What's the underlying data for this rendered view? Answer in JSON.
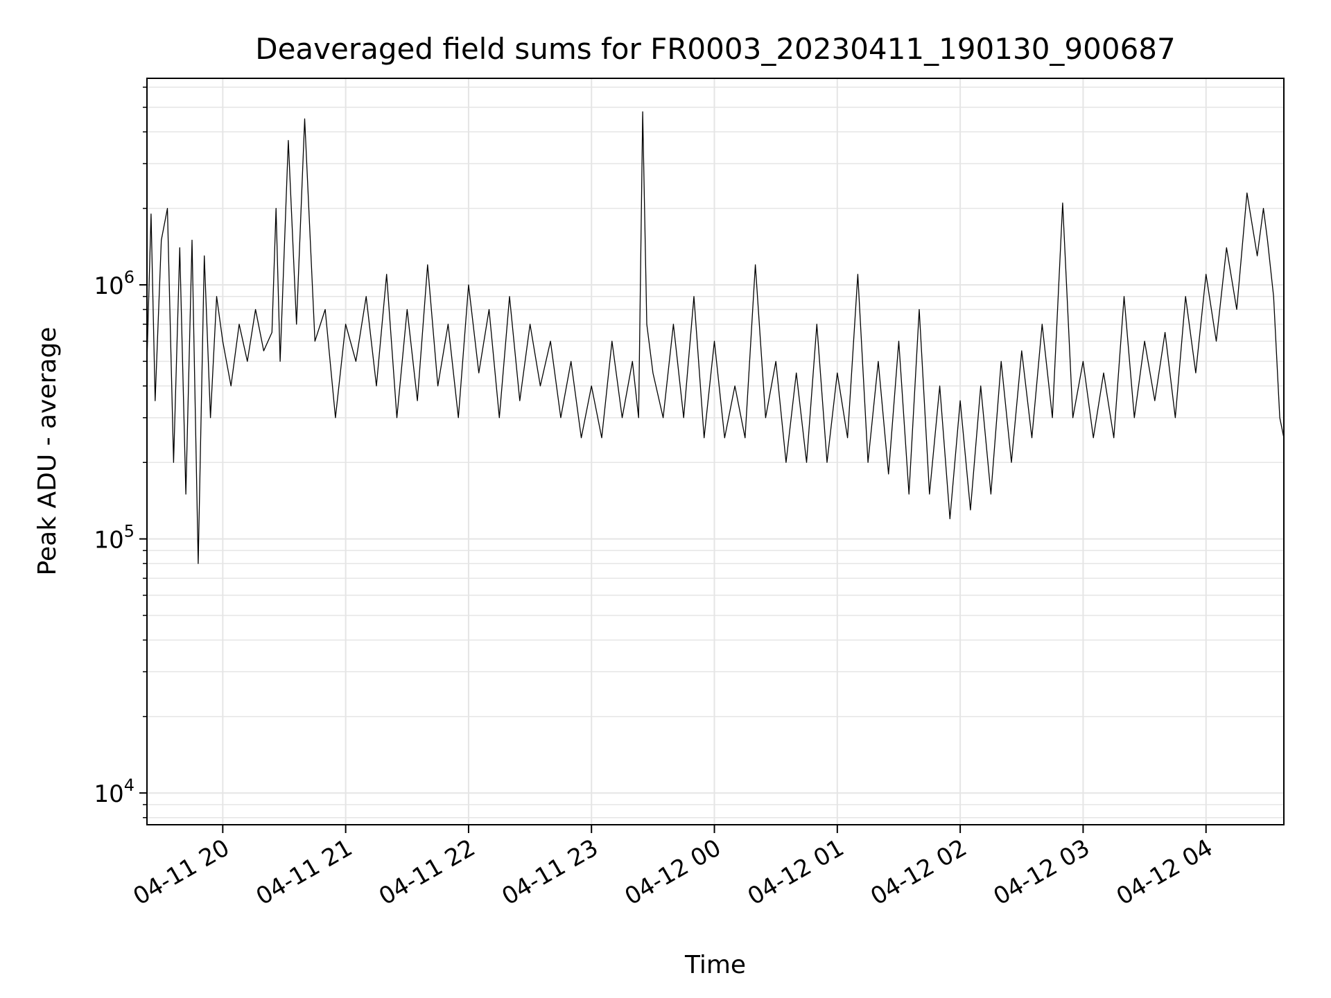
{
  "chart_data": {
    "type": "line",
    "title": "Deaveraged field sums for FR0003_20230411_190130_900687",
    "xlabel": "Time",
    "ylabel": "Peak ADU - average",
    "x_range": [
      "2023-04-11 19:23",
      "2023-04-12 04:38"
    ],
    "y_scale": "log",
    "ylim": [
      7500,
      6500000
    ],
    "y_ticks": [
      {
        "value": 10000,
        "base": "10",
        "exp": "4"
      },
      {
        "value": 100000,
        "base": "10",
        "exp": "5"
      },
      {
        "value": 1000000,
        "base": "10",
        "exp": "6"
      }
    ],
    "x_ticks": [
      {
        "value": "2023-04-11 20:00",
        "label": "04-11 20"
      },
      {
        "value": "2023-04-11 21:00",
        "label": "04-11 21"
      },
      {
        "value": "2023-04-11 22:00",
        "label": "04-11 22"
      },
      {
        "value": "2023-04-11 23:00",
        "label": "04-11 23"
      },
      {
        "value": "2023-04-12 00:00",
        "label": "04-12 00"
      },
      {
        "value": "2023-04-12 01:00",
        "label": "04-12 01"
      },
      {
        "value": "2023-04-12 02:00",
        "label": "04-12 02"
      },
      {
        "value": "2023-04-12 03:00",
        "label": "04-12 03"
      },
      {
        "value": "2023-04-12 04:00",
        "label": "04-12 04"
      }
    ],
    "grid": true,
    "line_color": "#000000",
    "grid_color": "#e5e5e5",
    "series": [
      {
        "x": [
          "2023-04-11 19:23",
          "2023-04-11 19:25",
          "2023-04-11 19:27",
          "2023-04-11 19:30",
          "2023-04-11 19:33",
          "2023-04-11 19:36",
          "2023-04-11 19:39",
          "2023-04-11 19:42",
          "2023-04-11 19:45",
          "2023-04-11 19:48",
          "2023-04-11 19:51",
          "2023-04-11 19:54",
          "2023-04-11 19:57",
          "2023-04-11 20:00",
          "2023-04-11 20:04",
          "2023-04-11 20:08",
          "2023-04-11 20:12",
          "2023-04-11 20:16",
          "2023-04-11 20:20",
          "2023-04-11 20:24",
          "2023-04-11 20:26",
          "2023-04-11 20:28",
          "2023-04-11 20:32",
          "2023-04-11 20:36",
          "2023-04-11 20:40",
          "2023-04-11 20:45",
          "2023-04-11 20:50",
          "2023-04-11 20:55",
          "2023-04-11 21:00",
          "2023-04-11 21:05",
          "2023-04-11 21:10",
          "2023-04-11 21:15",
          "2023-04-11 21:20",
          "2023-04-11 21:25",
          "2023-04-11 21:30",
          "2023-04-11 21:35",
          "2023-04-11 21:40",
          "2023-04-11 21:45",
          "2023-04-11 21:50",
          "2023-04-11 21:55",
          "2023-04-11 22:00",
          "2023-04-11 22:05",
          "2023-04-11 22:10",
          "2023-04-11 22:15",
          "2023-04-11 22:20",
          "2023-04-11 22:25",
          "2023-04-11 22:30",
          "2023-04-11 22:35",
          "2023-04-11 22:40",
          "2023-04-11 22:45",
          "2023-04-11 22:50",
          "2023-04-11 22:55",
          "2023-04-11 23:00",
          "2023-04-11 23:05",
          "2023-04-11 23:10",
          "2023-04-11 23:15",
          "2023-04-11 23:20",
          "2023-04-11 23:23",
          "2023-04-11 23:25",
          "2023-04-11 23:27",
          "2023-04-11 23:30",
          "2023-04-11 23:35",
          "2023-04-11 23:40",
          "2023-04-11 23:45",
          "2023-04-11 23:50",
          "2023-04-11 23:55",
          "2023-04-12 00:00",
          "2023-04-12 00:05",
          "2023-04-12 00:10",
          "2023-04-12 00:15",
          "2023-04-12 00:20",
          "2023-04-12 00:25",
          "2023-04-12 00:30",
          "2023-04-12 00:35",
          "2023-04-12 00:40",
          "2023-04-12 00:45",
          "2023-04-12 00:50",
          "2023-04-12 00:55",
          "2023-04-12 01:00",
          "2023-04-12 01:05",
          "2023-04-12 01:10",
          "2023-04-12 01:15",
          "2023-04-12 01:20",
          "2023-04-12 01:25",
          "2023-04-12 01:30",
          "2023-04-12 01:35",
          "2023-04-12 01:40",
          "2023-04-12 01:45",
          "2023-04-12 01:50",
          "2023-04-12 01:55",
          "2023-04-12 02:00",
          "2023-04-12 02:05",
          "2023-04-12 02:10",
          "2023-04-12 02:15",
          "2023-04-12 02:20",
          "2023-04-12 02:25",
          "2023-04-12 02:30",
          "2023-04-12 02:35",
          "2023-04-12 02:40",
          "2023-04-12 02:45",
          "2023-04-12 02:50",
          "2023-04-12 02:55",
          "2023-04-12 03:00",
          "2023-04-12 03:05",
          "2023-04-12 03:10",
          "2023-04-12 03:15",
          "2023-04-12 03:20",
          "2023-04-12 03:25",
          "2023-04-12 03:30",
          "2023-04-12 03:35",
          "2023-04-12 03:40",
          "2023-04-12 03:45",
          "2023-04-12 03:50",
          "2023-04-12 03:55",
          "2023-04-12 04:00",
          "2023-04-12 04:05",
          "2023-04-12 04:10",
          "2023-04-12 04:15",
          "2023-04-12 04:20",
          "2023-04-12 04:25",
          "2023-04-12 04:28",
          "2023-04-12 04:30",
          "2023-04-12 04:33",
          "2023-04-12 04:36",
          "2023-04-12 04:38"
        ],
        "y": [
          500000,
          1900000,
          350000,
          1500000,
          2000000,
          200000,
          1400000,
          150000,
          1500000,
          80000,
          1300000,
          300000,
          900000,
          600000,
          400000,
          700000,
          500000,
          800000,
          550000,
          650000,
          2000000,
          500000,
          3700000,
          700000,
          4500000,
          600000,
          800000,
          300000,
          700000,
          500000,
          900000,
          400000,
          1100000,
          300000,
          800000,
          350000,
          1200000,
          400000,
          700000,
          300000,
          1000000,
          450000,
          800000,
          300000,
          900000,
          350000,
          700000,
          400000,
          600000,
          300000,
          500000,
          250000,
          400000,
          250000,
          600000,
          300000,
          500000,
          300000,
          4800000,
          700000,
          450000,
          300000,
          700000,
          300000,
          900000,
          250000,
          600000,
          250000,
          400000,
          250000,
          1200000,
          300000,
          500000,
          200000,
          450000,
          200000,
          700000,
          200000,
          450000,
          250000,
          1100000,
          200000,
          500000,
          180000,
          600000,
          150000,
          800000,
          150000,
          400000,
          120000,
          350000,
          130000,
          400000,
          150000,
          500000,
          200000,
          550000,
          250000,
          700000,
          300000,
          2100000,
          300000,
          500000,
          250000,
          450000,
          250000,
          900000,
          300000,
          600000,
          350000,
          650000,
          300000,
          900000,
          450000,
          1100000,
          600000,
          1400000,
          800000,
          2300000,
          1300000,
          2000000,
          1500000,
          900000,
          300000,
          250000
        ]
      }
    ]
  }
}
